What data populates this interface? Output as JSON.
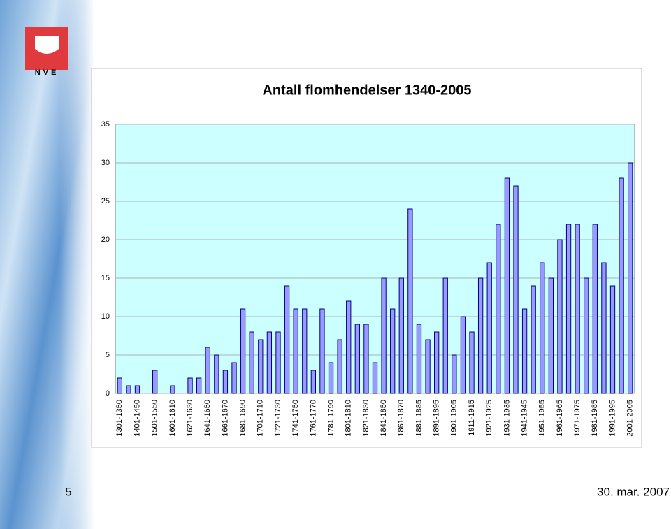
{
  "logo_text": "NVE",
  "page_number": "5",
  "date": "30. mar. 2007",
  "chart_data": {
    "type": "bar",
    "title": "Antall flomhendelser 1340-2005",
    "categories": [
      "1301-1350",
      null,
      "1401-1450",
      null,
      "1501-1550",
      null,
      "1601-1610",
      null,
      "1621-1630",
      null,
      "1641-1650",
      null,
      "1661-1670",
      null,
      "1681-1690",
      null,
      "1701-1710",
      null,
      "1721-1730",
      null,
      "1741-1750",
      null,
      "1761-1770",
      null,
      "1781-1790",
      null,
      "1801-1810",
      null,
      "1821-1830",
      null,
      "1841-1850",
      null,
      "1861-1870",
      null,
      "1881-1885",
      null,
      "1891-1895",
      null,
      "1901-1905",
      null,
      "1911-1915",
      null,
      "1921-1925",
      null,
      "1931-1935",
      null,
      "1941-1945",
      null,
      "1951-1955",
      null,
      "1961-1965",
      null,
      "1971-1975",
      null,
      "1981-1985",
      null,
      "1991-1995",
      null,
      "2001-2005"
    ],
    "values": [
      2,
      1,
      1,
      0,
      3,
      0,
      1,
      0,
      2,
      2,
      6,
      5,
      3,
      4,
      11,
      8,
      7,
      8,
      8,
      14,
      11,
      11,
      3,
      11,
      4,
      7,
      12,
      9,
      9,
      4,
      15,
      11,
      15,
      24,
      9,
      7,
      8,
      15,
      5,
      10,
      8,
      15,
      17,
      22,
      28,
      27,
      11,
      14,
      17,
      15,
      20,
      22,
      22,
      15,
      22,
      17,
      14,
      28,
      30
    ],
    "color": "#9999ff",
    "ylim": [
      0,
      35
    ],
    "yticks": [
      0,
      5,
      10,
      15,
      20,
      25,
      30,
      35
    ],
    "grid": true
  }
}
